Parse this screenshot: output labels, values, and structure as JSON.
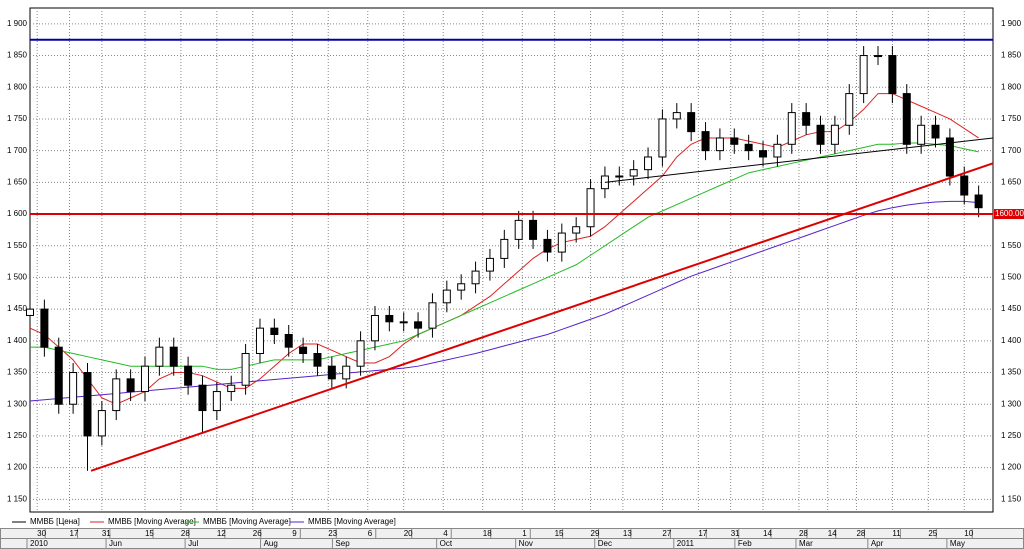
{
  "chart_data": {
    "type": "candlestick",
    "x": [
      0,
      4,
      8,
      12,
      16,
      20,
      24,
      28,
      32,
      36,
      40,
      44,
      48,
      52,
      56,
      60,
      64,
      68,
      72,
      76,
      80,
      84,
      88,
      92,
      96,
      100,
      104,
      108,
      112,
      116,
      120,
      124,
      128,
      132,
      136,
      140,
      144,
      148,
      152,
      156,
      160,
      164,
      168,
      172,
      176,
      180,
      184,
      188,
      192,
      196,
      200,
      204,
      208,
      212,
      216,
      220,
      224,
      228,
      232,
      236,
      240,
      244,
      248,
      252,
      256,
      260,
      264
    ],
    "series": [
      {
        "name": "ММВБ [Цена]",
        "color": "#000000",
        "open": [
          1440,
          1450,
          1390,
          1300,
          1350,
          1250,
          1290,
          1340,
          1320,
          1360,
          1390,
          1360,
          1330,
          1290,
          1320,
          1330,
          1380,
          1420,
          1410,
          1390,
          1380,
          1360,
          1340,
          1360,
          1400,
          1440,
          1430,
          1430,
          1420,
          1460,
          1480,
          1490,
          1510,
          1530,
          1560,
          1590,
          1560,
          1540,
          1570,
          1580,
          1640,
          1660,
          1660,
          1670,
          1690,
          1750,
          1760,
          1730,
          1700,
          1720,
          1710,
          1700,
          1690,
          1710,
          1760,
          1740,
          1710,
          1740,
          1790,
          1850,
          1850,
          1790,
          1710,
          1740,
          1720,
          1660,
          1630
        ],
        "high": [
          1465,
          1465,
          1405,
          1365,
          1365,
          1305,
          1355,
          1355,
          1375,
          1405,
          1405,
          1375,
          1345,
          1335,
          1345,
          1395,
          1435,
          1435,
          1425,
          1405,
          1395,
          1375,
          1375,
          1415,
          1455,
          1455,
          1445,
          1445,
          1475,
          1495,
          1505,
          1525,
          1545,
          1575,
          1605,
          1605,
          1575,
          1585,
          1595,
          1655,
          1675,
          1675,
          1685,
          1705,
          1765,
          1775,
          1775,
          1745,
          1735,
          1735,
          1725,
          1715,
          1725,
          1775,
          1775,
          1755,
          1755,
          1805,
          1865,
          1865,
          1865,
          1805,
          1755,
          1755,
          1735,
          1675,
          1645
        ],
        "low": [
          1425,
          1375,
          1285,
          1285,
          1195,
          1235,
          1275,
          1305,
          1305,
          1345,
          1345,
          1315,
          1255,
          1275,
          1305,
          1315,
          1365,
          1395,
          1375,
          1365,
          1345,
          1325,
          1325,
          1345,
          1385,
          1415,
          1415,
          1405,
          1405,
          1445,
          1465,
          1475,
          1495,
          1515,
          1545,
          1545,
          1525,
          1525,
          1555,
          1565,
          1625,
          1645,
          1645,
          1655,
          1675,
          1735,
          1715,
          1685,
          1685,
          1695,
          1685,
          1675,
          1675,
          1695,
          1725,
          1695,
          1695,
          1725,
          1775,
          1835,
          1775,
          1695,
          1695,
          1705,
          1645,
          1615,
          1595
        ],
        "close": [
          1450,
          1390,
          1300,
          1350,
          1250,
          1290,
          1340,
          1320,
          1360,
          1390,
          1360,
          1330,
          1290,
          1320,
          1330,
          1380,
          1420,
          1410,
          1390,
          1380,
          1360,
          1340,
          1360,
          1400,
          1440,
          1430,
          1430,
          1420,
          1460,
          1480,
          1490,
          1510,
          1530,
          1560,
          1590,
          1560,
          1540,
          1570,
          1580,
          1640,
          1660,
          1660,
          1670,
          1690,
          1750,
          1760,
          1730,
          1700,
          1720,
          1710,
          1700,
          1690,
          1710,
          1760,
          1740,
          1710,
          1740,
          1790,
          1850,
          1850,
          1790,
          1710,
          1740,
          1720,
          1660,
          1630,
          1610
        ]
      },
      {
        "name": "ММВБ [Moving Average]",
        "color": "#dd2222",
        "values": [
          1420,
          1410,
          1390,
          1370,
          1340,
          1310,
          1300,
          1310,
          1320,
          1340,
          1350,
          1350,
          1345,
          1335,
          1325,
          1325,
          1340,
          1360,
          1380,
          1395,
          1395,
          1385,
          1375,
          1365,
          1365,
          1375,
          1395,
          1410,
          1420,
          1430,
          1440,
          1455,
          1470,
          1490,
          1510,
          1530,
          1545,
          1555,
          1560,
          1565,
          1580,
          1600,
          1620,
          1640,
          1660,
          1690,
          1710,
          1720,
          1720,
          1720,
          1715,
          1710,
          1705,
          1715,
          1725,
          1730,
          1730,
          1745,
          1765,
          1790,
          1790,
          1780,
          1770,
          1760,
          1750,
          1735,
          1720
        ]
      },
      {
        "name": "ММВБ [Moving Average]",
        "color": "#22bb22",
        "values": [
          1390,
          1390,
          1385,
          1380,
          1375,
          1370,
          1365,
          1360,
          1360,
          1360,
          1360,
          1360,
          1360,
          1355,
          1355,
          1360,
          1365,
          1370,
          1370,
          1370,
          1370,
          1375,
          1380,
          1385,
          1390,
          1395,
          1400,
          1410,
          1420,
          1430,
          1440,
          1450,
          1460,
          1470,
          1480,
          1490,
          1500,
          1510,
          1520,
          1535,
          1550,
          1565,
          1580,
          1595,
          1605,
          1615,
          1625,
          1635,
          1645,
          1655,
          1665,
          1670,
          1675,
          1680,
          1685,
          1690,
          1695,
          1700,
          1705,
          1710,
          1710,
          1712,
          1712,
          1710,
          1708,
          1703,
          1698
        ]
      },
      {
        "name": "ММВБ [Moving Average]",
        "color": "#5522cc",
        "values": [
          1305,
          1307,
          1309,
          1311,
          1313,
          1315,
          1317,
          1319,
          1321,
          1323,
          1325,
          1327,
          1329,
          1331,
          1333,
          1335,
          1337,
          1339,
          1341,
          1343,
          1345,
          1347,
          1349,
          1351,
          1353,
          1355,
          1357,
          1360,
          1365,
          1370,
          1375,
          1380,
          1386,
          1392,
          1398,
          1404,
          1410,
          1418,
          1426,
          1434,
          1442,
          1452,
          1462,
          1472,
          1482,
          1492,
          1502,
          1510,
          1518,
          1526,
          1534,
          1542,
          1550,
          1558,
          1566,
          1574,
          1582,
          1590,
          1598,
          1605,
          1610,
          1614,
          1617,
          1619,
          1620,
          1620,
          1618
        ]
      }
    ],
    "hlines": [
      {
        "y": 1875,
        "color": "#0000aa"
      },
      {
        "y": 1600,
        "color": "#dd0000",
        "label": "1600.00"
      }
    ],
    "trendlines": [
      {
        "color": "#dd0000",
        "x": [
          17,
          268
        ],
        "y": [
          1195,
          1680
        ]
      },
      {
        "color": "#000000",
        "x": [
          160,
          268
        ],
        "y": [
          1650,
          1720
        ]
      }
    ],
    "xlim": [
      0,
      268
    ],
    "ylim": [
      1130,
      1925
    ],
    "yticks": [
      {
        "value": 1150,
        "label": "1 150"
      },
      {
        "value": 1200,
        "label": "1 200"
      },
      {
        "value": 1250,
        "label": "1 250"
      },
      {
        "value": 1300,
        "label": "1 300"
      },
      {
        "value": 1350,
        "label": "1 350"
      },
      {
        "value": 1400,
        "label": "1 400"
      },
      {
        "value": 1450,
        "label": "1 450"
      },
      {
        "value": 1500,
        "label": "1 500"
      },
      {
        "value": 1550,
        "label": "1 550"
      },
      {
        "value": 1600,
        "label": "1 600"
      },
      {
        "value": 1650,
        "label": "1 650"
      },
      {
        "value": 1700,
        "label": "1 700"
      },
      {
        "value": 1750,
        "label": "1 750"
      },
      {
        "value": 1800,
        "label": "1 800"
      },
      {
        "value": 1850,
        "label": "1 850"
      },
      {
        "value": 1900,
        "label": "1 900"
      }
    ],
    "xticks": [
      {
        "value": 2,
        "label": "30"
      },
      {
        "value": 11,
        "label": "17"
      },
      {
        "value": 20,
        "label": "31"
      },
      {
        "value": 32,
        "label": "15"
      },
      {
        "value": 42,
        "label": "28"
      },
      {
        "value": 52,
        "label": "12"
      },
      {
        "value": 62,
        "label": "26"
      },
      {
        "value": 73,
        "label": "9"
      },
      {
        "value": 83,
        "label": "23"
      },
      {
        "value": 94,
        "label": "6"
      },
      {
        "value": 104,
        "label": "20"
      },
      {
        "value": 115,
        "label": "4"
      },
      {
        "value": 126,
        "label": "18"
      },
      {
        "value": 137,
        "label": "1"
      },
      {
        "value": 146,
        "label": "15"
      },
      {
        "value": 156,
        "label": "29"
      },
      {
        "value": 165,
        "label": "13"
      },
      {
        "value": 176,
        "label": "27"
      },
      {
        "value": 186,
        "label": "17"
      },
      {
        "value": 195,
        "label": "31"
      },
      {
        "value": 204,
        "label": "14"
      },
      {
        "value": 214,
        "label": "28"
      },
      {
        "value": 222,
        "label": "14"
      },
      {
        "value": 230,
        "label": "28"
      },
      {
        "value": 240,
        "label": "11"
      },
      {
        "value": 250,
        "label": "25"
      },
      {
        "value": 260,
        "label": "10"
      }
    ],
    "month_ticks": [
      {
        "value": 0,
        "label": "2010"
      },
      {
        "value": 22,
        "label": "Jun"
      },
      {
        "value": 44,
        "label": "Jul"
      },
      {
        "value": 65,
        "label": "Aug"
      },
      {
        "value": 85,
        "label": "Sep"
      },
      {
        "value": 114,
        "label": "Oct"
      },
      {
        "value": 136,
        "label": "Nov"
      },
      {
        "value": 158,
        "label": "Dec"
      },
      {
        "value": 180,
        "label": "2011"
      },
      {
        "value": 197,
        "label": "Feb"
      },
      {
        "value": 214,
        "label": "Mar"
      },
      {
        "value": 234,
        "label": "Apr"
      },
      {
        "value": 256,
        "label": "May"
      }
    ],
    "grid": true
  }
}
